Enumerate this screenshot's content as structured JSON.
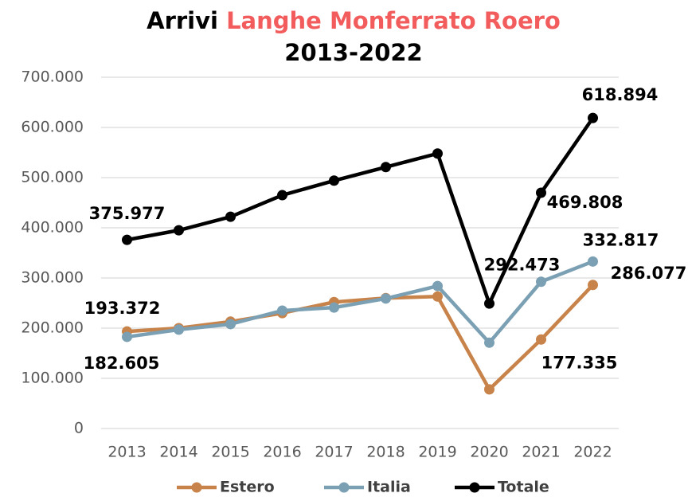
{
  "chart_data": {
    "type": "line",
    "title": [
      "Arrivi",
      "Langhe Monferrato Roero",
      "2013-2022"
    ],
    "title_colors": [
      "#000000",
      "#f25c5c",
      "#000000"
    ],
    "categories": [
      "2013",
      "2014",
      "2015",
      "2016",
      "2017",
      "2018",
      "2019",
      "2020",
      "2021",
      "2022"
    ],
    "series": [
      {
        "name": "Estero",
        "color": "#c8834a",
        "values": [
          193372,
          200000,
          213000,
          230000,
          252000,
          260000,
          263000,
          78000,
          177335,
          286077
        ],
        "value_labels": [
          "193.372",
          null,
          null,
          null,
          null,
          null,
          null,
          null,
          "177.335",
          "286.077"
        ]
      },
      {
        "name": "Italia",
        "color": "#7ba0b4",
        "values": [
          182605,
          197000,
          208000,
          235000,
          241000,
          259000,
          284000,
          171000,
          292473,
          332817
        ],
        "value_labels": [
          "182.605",
          null,
          null,
          null,
          null,
          null,
          null,
          null,
          "292.473",
          "332.817"
        ]
      },
      {
        "name": "Totale",
        "color": "#000000",
        "values": [
          375977,
          395000,
          422000,
          465000,
          494000,
          521000,
          548000,
          249000,
          469808,
          618894
        ],
        "value_labels": [
          "375.977",
          null,
          null,
          null,
          null,
          null,
          null,
          null,
          "469.808",
          "618.894"
        ]
      }
    ],
    "ylim": [
      0,
      700000
    ],
    "yticks": [
      0,
      {
        "value": 100000,
        "label": "100.000"
      },
      {
        "value": 200000,
        "label": "200.000"
      },
      {
        "value": 300000,
        "label": "300.000"
      },
      {
        "value": 400000,
        "label": "400.000"
      },
      {
        "value": 500000,
        "label": "500.000"
      },
      {
        "value": 600000,
        "label": "600.000"
      },
      {
        "value": 700000,
        "label": "700.000"
      }
    ],
    "grid": true,
    "legend": "bottom"
  }
}
